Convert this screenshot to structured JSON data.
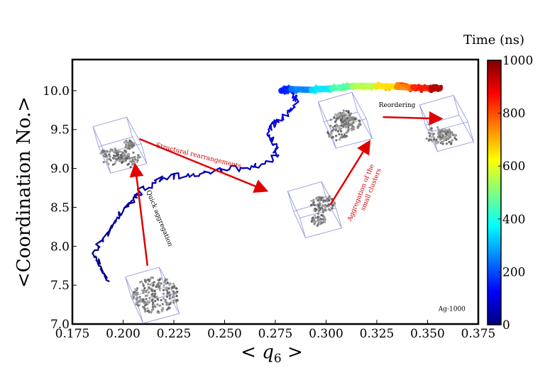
{
  "chart_data": {
    "type": "line",
    "title": "",
    "xlabel": "< q6 >",
    "ylabel": "<Coordination No.>",
    "xlim": [
      0.175,
      0.375
    ],
    "ylim": [
      7.0,
      10.4
    ],
    "xticks": [
      0.175,
      0.2,
      0.225,
      0.25,
      0.275,
      0.3,
      0.325,
      0.35,
      0.375
    ],
    "xtick_labels": [
      "0.175",
      "0.200",
      "0.225",
      "0.250",
      "0.275",
      "0.300",
      "0.325",
      "0.350",
      "0.375"
    ],
    "yticks": [
      7.0,
      7.5,
      8.0,
      8.5,
      9.0,
      9.5,
      10.0
    ],
    "ytick_labels": [
      "7.0",
      "7.5",
      "8.0",
      "8.5",
      "9.0",
      "9.5",
      "10.0"
    ],
    "colorbar": {
      "title": "Time (ns)",
      "range": [
        0,
        1000
      ],
      "ticks": [
        0,
        200,
        400,
        600,
        800,
        1000
      ],
      "tick_labels": [
        "0",
        "200",
        "400",
        "600",
        "800",
        "1000"
      ]
    },
    "series": [
      {
        "color_by": "time",
        "points": [
          {
            "x": 0.193,
            "y": 7.55,
            "t": 0
          },
          {
            "x": 0.188,
            "y": 7.75,
            "t": 5
          },
          {
            "x": 0.186,
            "y": 7.95,
            "t": 10
          },
          {
            "x": 0.19,
            "y": 8.1,
            "t": 15
          },
          {
            "x": 0.196,
            "y": 8.3,
            "t": 20
          },
          {
            "x": 0.2,
            "y": 8.45,
            "t": 25
          },
          {
            "x": 0.205,
            "y": 8.62,
            "t": 30
          },
          {
            "x": 0.21,
            "y": 8.75,
            "t": 35
          },
          {
            "x": 0.22,
            "y": 8.88,
            "t": 40
          },
          {
            "x": 0.232,
            "y": 8.93,
            "t": 45
          },
          {
            "x": 0.245,
            "y": 8.97,
            "t": 50
          },
          {
            "x": 0.258,
            "y": 9.01,
            "t": 55
          },
          {
            "x": 0.268,
            "y": 9.05,
            "t": 60
          },
          {
            "x": 0.276,
            "y": 9.15,
            "t": 65
          },
          {
            "x": 0.274,
            "y": 9.3,
            "t": 70
          },
          {
            "x": 0.272,
            "y": 9.48,
            "t": 75
          },
          {
            "x": 0.275,
            "y": 9.6,
            "t": 80
          },
          {
            "x": 0.281,
            "y": 9.72,
            "t": 90
          },
          {
            "x": 0.286,
            "y": 9.85,
            "t": 100
          },
          {
            "x": 0.284,
            "y": 9.95,
            "t": 110
          },
          {
            "x": 0.278,
            "y": 10.0,
            "t": 150
          },
          {
            "x": 0.283,
            "y": 10.02,
            "t": 250
          },
          {
            "x": 0.293,
            "y": 10.01,
            "t": 350
          },
          {
            "x": 0.303,
            "y": 10.03,
            "t": 450
          },
          {
            "x": 0.313,
            "y": 10.06,
            "t": 550
          },
          {
            "x": 0.325,
            "y": 10.06,
            "t": 650
          },
          {
            "x": 0.335,
            "y": 10.05,
            "t": 750
          },
          {
            "x": 0.343,
            "y": 10.04,
            "t": 850
          },
          {
            "x": 0.352,
            "y": 10.03,
            "t": 950
          },
          {
            "x": 0.356,
            "y": 10.03,
            "t": 1000
          }
        ]
      }
    ],
    "annotations": [
      {
        "text": "Quick aggregation",
        "color": "#000000",
        "at": [
          0.217,
          8.35
        ],
        "rotate": 68
      },
      {
        "text": "Structural rearrangements",
        "color": "#cc0000",
        "at": [
          0.237,
          9.14
        ],
        "rotate": 14
      },
      {
        "text": "Aggregation of the",
        "color": "#cc0000",
        "at": [
          0.318,
          8.68
        ],
        "rotate": -68
      },
      {
        "text": "small clusters",
        "color": "#cc0000",
        "at": [
          0.323,
          8.72
        ],
        "rotate": -68
      },
      {
        "text": "Reordering",
        "color": "#000000",
        "at": [
          0.335,
          9.79
        ],
        "rotate": 0
      },
      {
        "text": "Ag-1000",
        "color": "#000000",
        "at": [
          0.362,
          7.17
        ],
        "rotate": 0
      }
    ],
    "arrows": [
      {
        "from": [
          0.212,
          7.75
        ],
        "to": [
          0.206,
          9.03
        ],
        "color": "#e00000"
      },
      {
        "from": [
          0.208,
          9.38
        ],
        "to": [
          0.27,
          8.72
        ],
        "color": "#e00000"
      },
      {
        "from": [
          0.302,
          8.53
        ],
        "to": [
          0.321,
          9.33
        ],
        "color": "#e00000"
      },
      {
        "from": [
          0.328,
          9.66
        ],
        "to": [
          0.356,
          9.64
        ],
        "color": "#e00000"
      }
    ],
    "cluster_insets": [
      {
        "name": "initial",
        "center": [
          0.213,
          7.42
        ]
      },
      {
        "name": "quick-aggregation",
        "center": [
          0.197,
          9.35
        ]
      },
      {
        "name": "rearranged",
        "center": [
          0.293,
          8.52
        ]
      },
      {
        "name": "aggregated",
        "center": [
          0.308,
          9.67
        ]
      },
      {
        "name": "reordered",
        "center": [
          0.358,
          9.63
        ]
      }
    ]
  }
}
